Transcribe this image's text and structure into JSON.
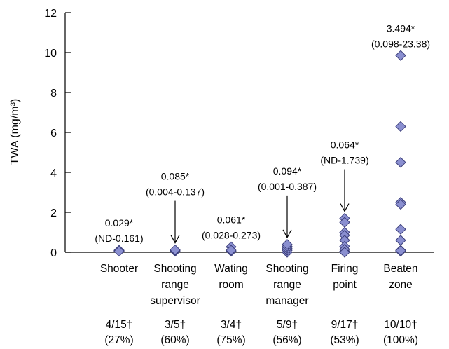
{
  "chart_data": {
    "type": "scatter",
    "ylabel": "TWA (mg/m³)",
    "ylim": [
      0,
      12
    ],
    "yticks": [
      0,
      2,
      4,
      6,
      8,
      10,
      12
    ],
    "marker": "diamond",
    "marker_color": "#8a8fd0",
    "groups": [
      {
        "label_lines": [
          "Shooter"
        ],
        "median": "0.029*",
        "range": "(ND-0.161)",
        "arrow": false,
        "detected": "4/15†",
        "percent": "(27%)",
        "values": [
          0.06,
          0.08,
          0.1,
          0.05
        ]
      },
      {
        "label_lines": [
          "Shooting",
          "range",
          "supervisor"
        ],
        "median": "0.085*",
        "range": "(0.004-0.137)",
        "arrow": true,
        "detected": "3/5†",
        "percent": "(60%)",
        "values": [
          0.05,
          0.09,
          0.12
        ]
      },
      {
        "label_lines": [
          "Wating",
          "room"
        ],
        "median": "0.061*",
        "range": "(0.028-0.273)",
        "arrow": false,
        "detected": "3/4†",
        "percent": "(75%)",
        "values": [
          0.05,
          0.27,
          0.1
        ]
      },
      {
        "label_lines": [
          "Shooting",
          "range",
          "manager"
        ],
        "median": "0.094*",
        "range": "(0.001-0.387)",
        "arrow": true,
        "detected": "5/9†",
        "percent": "(56%)",
        "values": [
          0.0,
          0.1,
          0.2,
          0.3,
          0.39
        ]
      },
      {
        "label_lines": [
          "Firing",
          "point"
        ],
        "median": "0.064*",
        "range": "(ND-1.739)",
        "arrow": true,
        "detected": "9/17†",
        "percent": "(53%)",
        "values": [
          1.7,
          1.5,
          1.0,
          0.85,
          0.6,
          0.3,
          0.05,
          0.15,
          0.0
        ]
      },
      {
        "label_lines": [
          "Beaten",
          "zone"
        ],
        "median": "3.494*",
        "range": "(0.098-23.38)",
        "arrow": false,
        "detected": "10/10†",
        "percent": "(100%)",
        "values": [
          9.85,
          6.3,
          4.5,
          2.5,
          2.4,
          1.15,
          0.6,
          0.1,
          0.05,
          0.08
        ]
      }
    ]
  }
}
